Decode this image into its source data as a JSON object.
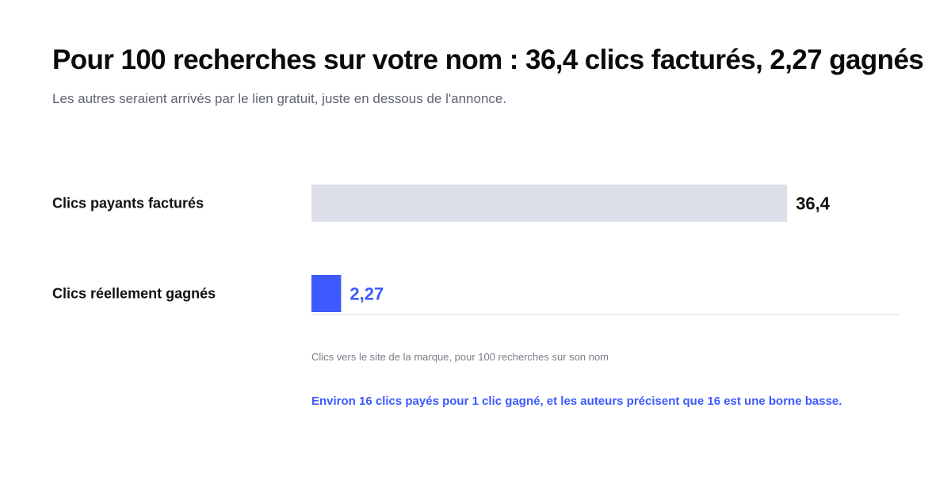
{
  "title": "Pour 100 recherches sur votre nom : 36,4 clics facturés, 2,27 gagnés",
  "subtitle": "Les autres seraient arrivés par le lien gratuit, juste en dessous de l'annonce.",
  "chart_data": {
    "type": "bar",
    "orientation": "horizontal",
    "title": "Pour 100 recherches sur votre nom : 36,4 clics facturés, 2,27 gagnés",
    "subtitle": "Les autres seraient arrivés par le lien gratuit, juste en dessous de l'annonce.",
    "categories": [
      "Clics payants facturés",
      "Clics réellement gagnés"
    ],
    "values": [
      36.4,
      2.27
    ],
    "value_labels": [
      "36,4",
      "2,27"
    ],
    "bar_colors": [
      "#dcdfe8",
      "#3d5afe"
    ],
    "label_colors": [
      "#111111",
      "#3d5afe"
    ],
    "xlim": [
      0,
      45
    ],
    "grid": false,
    "legend": "none",
    "xlabel": "",
    "ylabel": ""
  },
  "caption": "Clics vers le site de la marque, pour 100 recherches sur son nom",
  "note": "Environ 16 clics payés pour 1 clic gagné, et les auteurs précisent que 16 est une borne basse."
}
